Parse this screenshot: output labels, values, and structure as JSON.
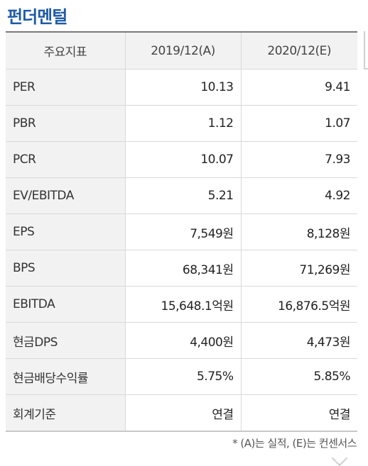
{
  "title": "펀더멘털",
  "table": {
    "headers": [
      "주요지표",
      "2019/12(A)",
      "2020/12(E)"
    ],
    "rows": [
      {
        "label": "PER",
        "a": "10.13",
        "b": "9.41"
      },
      {
        "label": "PBR",
        "a": "1.12",
        "b": "1.07"
      },
      {
        "label": "PCR",
        "a": "10.07",
        "b": "7.93"
      },
      {
        "label": "EV/EBITDA",
        "a": "5.21",
        "b": "4.92"
      },
      {
        "label": "EPS",
        "a": "7,549원",
        "b": "8,128원"
      },
      {
        "label": "BPS",
        "a": "68,341원",
        "b": "71,269원"
      },
      {
        "label": "EBITDA",
        "a": "15,648.1억원",
        "b": "16,876.5억원"
      },
      {
        "label": "현금DPS",
        "a": "4,400원",
        "b": "4,473원"
      },
      {
        "label": "현금배당수익률",
        "a": "5.75%",
        "b": "5.85%"
      },
      {
        "label": "회계기준",
        "a": "연결",
        "b": "연결"
      }
    ]
  },
  "note": "* (A)는 실적, (E)는 컨센서스"
}
